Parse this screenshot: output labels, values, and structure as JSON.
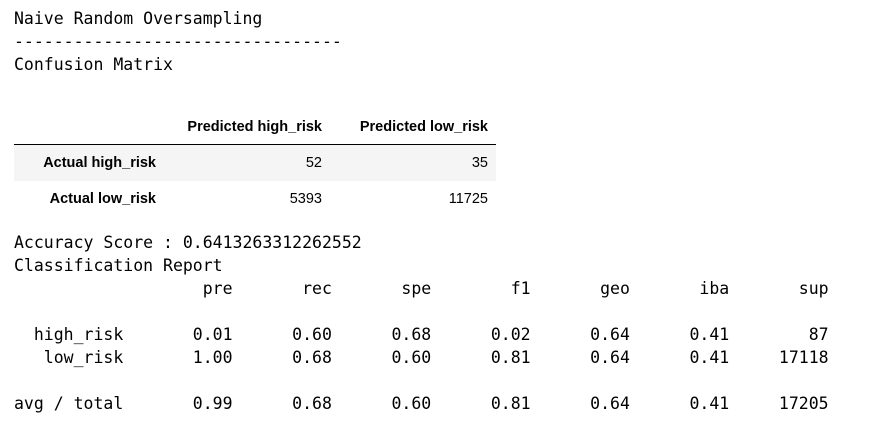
{
  "header": {
    "title": "Naive Random Oversampling",
    "separator": "---------------------------------",
    "subtitle": "Confusion Matrix"
  },
  "confusion_matrix": {
    "columns": [
      "Predicted high_risk",
      "Predicted low_risk"
    ],
    "rows": [
      {
        "label": "Actual high_risk",
        "values": [
          "52",
          "35"
        ]
      },
      {
        "label": "Actual low_risk",
        "values": [
          "5393",
          "11725"
        ]
      }
    ]
  },
  "accuracy": {
    "line": "Accuracy Score : 0.6413263312262552"
  },
  "report": {
    "title": "Classification Report",
    "header": "                   pre       rec       spe        f1       geo       iba       sup",
    "rows": [
      "",
      "  high_risk       0.01      0.60      0.68      0.02      0.64      0.41        87",
      "   low_risk       1.00      0.68      0.60      0.81      0.64      0.41     17118",
      "",
      "avg / total       0.99      0.68      0.60      0.81      0.64      0.41     17205"
    ]
  }
}
